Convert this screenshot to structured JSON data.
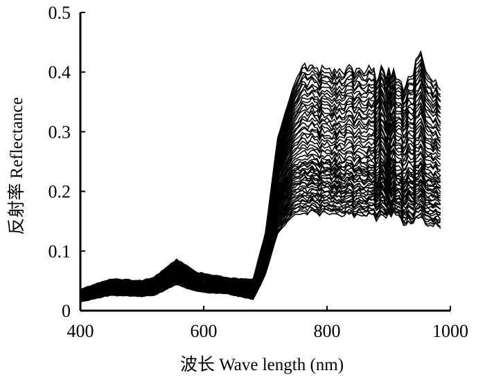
{
  "chart_data": {
    "type": "line",
    "title": "",
    "xlabel": "波长 Wave length (nm)",
    "ylabel": "反射率 Reflectance",
    "xlim": [
      400,
      1000
    ],
    "ylim": [
      0,
      0.5
    ],
    "x_ticks": [
      "400",
      "600",
      "800",
      "1000"
    ],
    "y_ticks": [
      "0",
      "0.1",
      "0.2",
      "0.3",
      "0.4",
      "0.5"
    ],
    "grid": false,
    "legend": "none",
    "series_count": 60,
    "line_color": "#000000",
    "x": [
      400,
      450,
      500,
      520,
      556,
      590,
      640,
      680,
      700,
      720,
      745,
      760,
      800,
      850,
      900,
      915,
      925,
      950,
      985
    ],
    "series_envelope": [
      {
        "name": "",
        "values": [
          0.015,
          0.026,
          0.024,
          0.026,
          0.044,
          0.032,
          0.028,
          0.019,
          0.06,
          0.13,
          0.16,
          0.165,
          0.162,
          0.16,
          0.158,
          0.162,
          0.145,
          0.15,
          0.14
        ]
      },
      {
        "name": "",
        "values": [
          0.026,
          0.038,
          0.032,
          0.038,
          0.062,
          0.047,
          0.039,
          0.031,
          0.09,
          0.2,
          0.245,
          0.252,
          0.248,
          0.246,
          0.238,
          0.235,
          0.225,
          0.24,
          0.225
        ]
      },
      {
        "name": "",
        "values": [
          0.036,
          0.053,
          0.05,
          0.056,
          0.086,
          0.064,
          0.055,
          0.052,
          0.13,
          0.29,
          0.375,
          0.41,
          0.4,
          0.405,
          0.395,
          0.39,
          0.375,
          0.42,
          0.365
        ]
      }
    ]
  }
}
